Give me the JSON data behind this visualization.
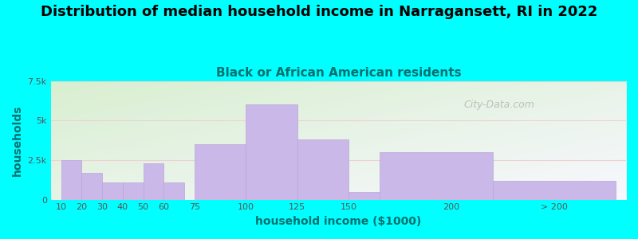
{
  "title": "Distribution of median household income in Narragansett, RI in 2022",
  "subtitle": "Black or African American residents",
  "xlabel": "household income ($1000)",
  "ylabel": "households",
  "background_color": "#00FFFF",
  "plot_bg_top_left": "#d8efd0",
  "plot_bg_bottom_right": "#f8f8ff",
  "bar_color": "#c9b8e8",
  "bar_edge_color": "#b8a8d8",
  "categories": [
    "10",
    "20",
    "30",
    "40",
    "50",
    "60",
    "75",
    "100",
    "125",
    "150",
    "200",
    "> 200"
  ],
  "values": [
    2500,
    1700,
    1100,
    1100,
    2300,
    1100,
    3500,
    6000,
    3800,
    500,
    3000,
    1200
  ],
  "x_lefts": [
    10,
    20,
    30,
    40,
    50,
    60,
    75,
    100,
    125,
    150,
    165,
    220
  ],
  "x_widths": [
    10,
    10,
    10,
    10,
    10,
    10,
    25,
    25,
    25,
    15,
    55,
    60
  ],
  "tick_positions": [
    10,
    20,
    30,
    40,
    50,
    60,
    75,
    100,
    125,
    150,
    200,
    250
  ],
  "xlim": [
    5,
    285
  ],
  "ylim": [
    0,
    7500
  ],
  "yticks": [
    0,
    2500,
    5000,
    7500
  ],
  "ytick_labels": [
    "0",
    "2.5k",
    "5k",
    "7.5k"
  ],
  "title_fontsize": 13,
  "subtitle_fontsize": 11,
  "axis_label_fontsize": 10,
  "tick_fontsize": 8,
  "watermark_text": "City-Data.com"
}
